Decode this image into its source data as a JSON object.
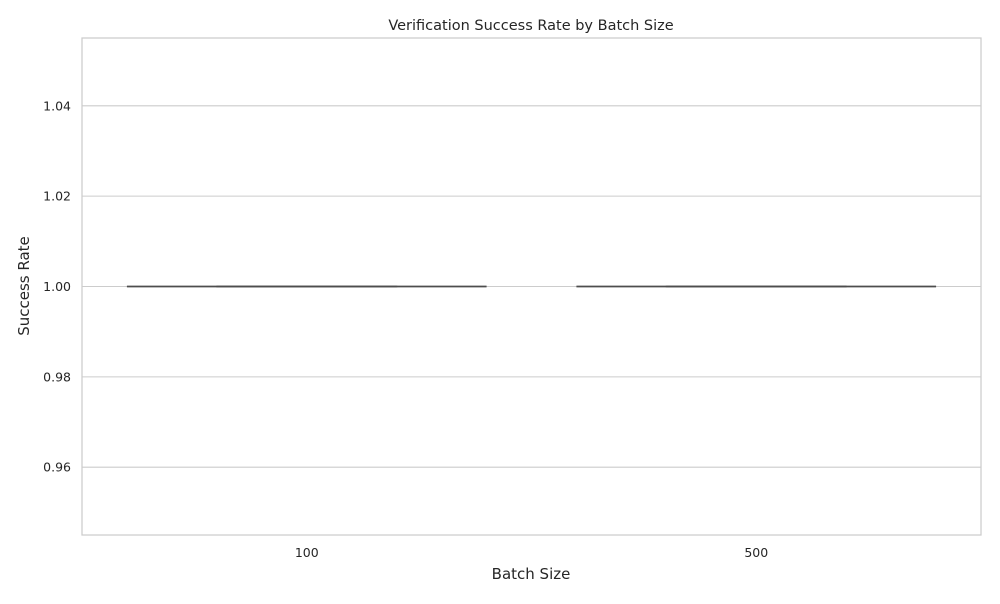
{
  "chart_data": {
    "type": "box",
    "title": "Verification Success Rate by Batch Size",
    "xlabel": "Batch Size",
    "ylabel": "Success Rate",
    "categories": [
      "100",
      "500"
    ],
    "boxes": [
      {
        "category": "100",
        "min": 1.0,
        "q1": 1.0,
        "median": 1.0,
        "q3": 1.0,
        "max": 1.0
      },
      {
        "category": "500",
        "min": 1.0,
        "q1": 1.0,
        "median": 1.0,
        "q3": 1.0,
        "max": 1.0
      }
    ],
    "ylim": [
      0.945,
      1.055
    ],
    "yticks": [
      0.96,
      0.98,
      1.0,
      1.02,
      1.04
    ],
    "ytick_labels": [
      "0.96",
      "0.98",
      "1.00",
      "1.02",
      "1.04"
    ],
    "grid": true,
    "colors": {
      "grid": "#cccccc",
      "frame": "#cccccc",
      "box_line": "#4d4d4d"
    }
  }
}
